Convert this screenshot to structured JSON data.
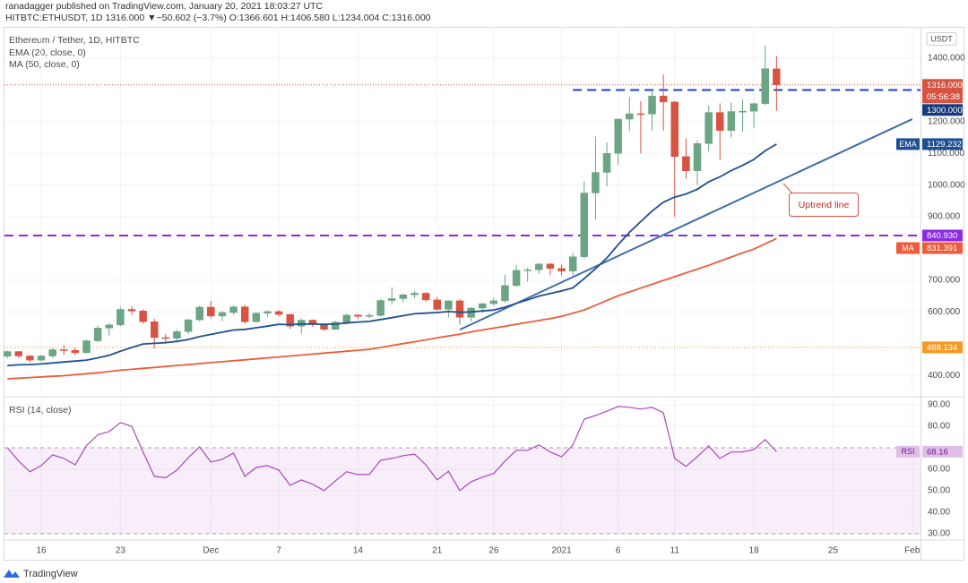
{
  "header": {
    "publisher": "ranadagger published on TradingView.com, January 20, 2021 18:03:27 UTC",
    "symbol": "HITBTC:ETHUSDT, 1D",
    "last": "1316.000",
    "change": "▼−50.602 (−3.7%)",
    "open": "O:1366.601",
    "high": "H:1406.580",
    "low": "L:1234.004",
    "close": "C:1316.000"
  },
  "footer": {
    "brand": "TradingView"
  },
  "chart_data": [
    {
      "type": "candlestick",
      "title": "Ethereum / Tether, 1D, HITBTC",
      "currency": "USDT",
      "up_color": "#6ba583",
      "down_color": "#d75442",
      "x": [
        "2020-11-13",
        "2020-11-14",
        "2020-11-15",
        "2020-11-16",
        "2020-11-17",
        "2020-11-18",
        "2020-11-19",
        "2020-11-20",
        "2020-11-21",
        "2020-11-22",
        "2020-11-23",
        "2020-11-24",
        "2020-11-25",
        "2020-11-26",
        "2020-11-27",
        "2020-11-28",
        "2020-11-29",
        "2020-11-30",
        "2020-12-01",
        "2020-12-02",
        "2020-12-03",
        "2020-12-04",
        "2020-12-05",
        "2020-12-06",
        "2020-12-07",
        "2020-12-08",
        "2020-12-09",
        "2020-12-10",
        "2020-12-11",
        "2020-12-12",
        "2020-12-13",
        "2020-12-14",
        "2020-12-15",
        "2020-12-16",
        "2020-12-17",
        "2020-12-18",
        "2020-12-19",
        "2020-12-20",
        "2020-12-21",
        "2020-12-22",
        "2020-12-23",
        "2020-12-24",
        "2020-12-25",
        "2020-12-26",
        "2020-12-27",
        "2020-12-28",
        "2020-12-29",
        "2020-12-30",
        "2020-12-31",
        "2021-01-01",
        "2021-01-02",
        "2021-01-03",
        "2021-01-04",
        "2021-01-05",
        "2021-01-06",
        "2021-01-07",
        "2021-01-08",
        "2021-01-09",
        "2021-01-10",
        "2021-01-11",
        "2021-01-12",
        "2021-01-13",
        "2021-01-14",
        "2021-01-15",
        "2021-01-16",
        "2021-01-17",
        "2021-01-18",
        "2021-01-19",
        "2021-01-20"
      ],
      "open": [
        460,
        475,
        461,
        448,
        461,
        481,
        479,
        471,
        509,
        549,
        559,
        608,
        603,
        569,
        519,
        517,
        538,
        575,
        615,
        587,
        598,
        616,
        569,
        596,
        601,
        592,
        555,
        574,
        560,
        545,
        568,
        590,
        586,
        589,
        636,
        642,
        654,
        659,
        638,
        608,
        635,
        583,
        612,
        626,
        635,
        683,
        731,
        733,
        751,
        737,
        729,
        774,
        975,
        1040,
        1100,
        1208,
        1225,
        1224,
        1281,
        1262,
        1090,
        1045,
        1131,
        1229,
        1172,
        1232,
        1233,
        1257,
        1366.601
      ],
      "high": [
        478,
        476,
        464,
        465,
        486,
        496,
        487,
        512,
        556,
        565,
        616,
        618,
        608,
        578,
        530,
        545,
        578,
        620,
        635,
        603,
        620,
        622,
        599,
        605,
        606,
        595,
        579,
        576,
        562,
        572,
        595,
        592,
        596,
        640,
        677,
        658,
        666,
        662,
        647,
        637,
        640,
        615,
        628,
        645,
        717,
        748,
        740,
        754,
        754,
        749,
        786,
        1012,
        1153,
        1135,
        1210,
        1278,
        1265,
        1300,
        1349,
        1265,
        1148,
        1141,
        1250,
        1258,
        1260,
        1270,
        1260,
        1440,
        1406.58
      ],
      "low": [
        453,
        455,
        441,
        444,
        455,
        465,
        464,
        470,
        505,
        525,
        555,
        590,
        563,
        485,
        500,
        508,
        530,
        570,
        580,
        571,
        591,
        563,
        566,
        584,
        585,
        546,
        531,
        553,
        540,
        543,
        562,
        578,
        580,
        585,
        623,
        630,
        644,
        632,
        603,
        583,
        560,
        570,
        596,
        620,
        628,
        680,
        695,
        720,
        716,
        715,
        715,
        768,
        890,
        996,
        1064,
        1170,
        1100,
        1172,
        1172,
        900,
        1020,
        1000,
        1107,
        1080,
        1150,
        1168,
        1180,
        1252,
        1234.004
      ],
      "close": [
        475,
        461,
        448,
        461,
        481,
        479,
        471,
        509,
        549,
        559,
        608,
        603,
        569,
        519,
        517,
        538,
        575,
        615,
        587,
        598,
        616,
        569,
        596,
        601,
        592,
        555,
        574,
        560,
        545,
        568,
        590,
        586,
        589,
        636,
        642,
        654,
        659,
        638,
        608,
        635,
        583,
        612,
        626,
        635,
        683,
        731,
        733,
        751,
        737,
        729,
        774,
        975,
        1040,
        1100,
        1208,
        1225,
        1224,
        1281,
        1262,
        1090,
        1045,
        1131,
        1229,
        1172,
        1232,
        1233,
        1257,
        1367,
        1316
      ],
      "series": [
        {
          "name": "EMA (20, close, 0)",
          "tag": "EMA",
          "color": "#1f4f91",
          "values": [
            431,
            433,
            434,
            436,
            439,
            442,
            445,
            448,
            455,
            463,
            476,
            488,
            499,
            501,
            503,
            507,
            513,
            522,
            529,
            536,
            543,
            545,
            550,
            555,
            561,
            560,
            562,
            562,
            561,
            562,
            565,
            568,
            570,
            576,
            582,
            588,
            594,
            596,
            598,
            601,
            599,
            600,
            603,
            606,
            615,
            627,
            638,
            650,
            658,
            666,
            676,
            705,
            736,
            770,
            812,
            851,
            885,
            918,
            946,
            962,
            972,
            987,
            1010,
            1026,
            1046,
            1062,
            1081,
            1108,
            1129.232
          ]
        },
        {
          "name": "MA (50, close, 0)",
          "tag": "MA",
          "color": "#ec5b3b",
          "values": [
            389,
            391,
            393,
            395,
            397,
            399,
            402,
            405,
            408,
            412,
            416,
            419,
            422,
            425,
            428,
            431,
            434,
            437,
            440,
            443,
            446,
            449,
            452,
            455,
            458,
            461,
            464,
            467,
            470,
            473,
            476,
            479,
            482,
            488,
            494,
            500,
            506,
            512,
            518,
            524,
            530,
            537,
            543,
            549,
            555,
            561,
            567,
            573,
            579,
            586,
            596,
            606,
            621,
            636,
            651,
            663,
            675,
            687,
            699,
            711,
            723,
            735,
            747,
            760,
            773,
            786,
            798,
            815,
            831.391
          ]
        }
      ],
      "levels": [
        {
          "value": 1316,
          "label": "1316.000",
          "color": "#d75442",
          "dash": "1 2",
          "countdown": "05:56:38"
        },
        {
          "value": 1300,
          "label": "1300.000",
          "color": "#1c3fd0",
          "dash": "10 6",
          "from": "2021-01-02",
          "badge_color": "#15397a"
        },
        {
          "value": 840.93,
          "label": "840.930",
          "color": "#8a2be2",
          "dash": "10 6"
        },
        {
          "value": 488.134,
          "label": "488.134",
          "color": "#f39a20",
          "dash": "1 2"
        }
      ],
      "trendline": {
        "x": [
          "2020-12-23",
          "2021-02-01"
        ],
        "values": [
          544,
          1208
        ],
        "color": "#3d6ea6"
      },
      "annotation": "Uptrend line",
      "xlim": [
        "2020-11-12T18:00:00Z",
        "2021-02-01T17:30:00Z"
      ],
      "xticks": [
        {
          "value": "2020-11-16",
          "label": "16"
        },
        {
          "value": "2020-11-23",
          "label": "23"
        },
        {
          "value": "2020-12-01",
          "label": "Dec"
        },
        {
          "value": "2020-12-07",
          "label": "7"
        },
        {
          "value": "2020-12-14",
          "label": "14"
        },
        {
          "value": "2020-12-21",
          "label": "21"
        },
        {
          "value": "2020-12-26",
          "label": "26"
        },
        {
          "value": "2021-01-01",
          "label": "2021"
        },
        {
          "value": "2021-01-06",
          "label": "6"
        },
        {
          "value": "2021-01-11",
          "label": "11"
        },
        {
          "value": "2021-01-18",
          "label": "18"
        },
        {
          "value": "2021-01-25",
          "label": "25"
        },
        {
          "value": "2021-02-01",
          "label": "Feb"
        }
      ],
      "ylim": [
        341,
        1499
      ],
      "yticks": [
        {
          "value": 1400,
          "label": "1400.000"
        },
        {
          "value": 1200,
          "label": "1200.000"
        },
        {
          "value": 1100,
          "label": "1100.000"
        },
        {
          "value": 1000,
          "label": "1000.000"
        },
        {
          "value": 900,
          "label": "900.000"
        },
        {
          "value": 700,
          "label": "700.000"
        },
        {
          "value": 600,
          "label": "600.000"
        },
        {
          "value": 400,
          "label": "400.000"
        }
      ],
      "grid": true
    },
    {
      "type": "line",
      "title": "RSI (14, close)",
      "series": [
        {
          "name": "RSI (14, close)",
          "tag": "RSI",
          "color": "#ab47bc",
          "values": [
            70,
            63.8,
            58.8,
            61.7,
            66.7,
            65,
            62,
            71,
            76,
            77.5,
            81.7,
            80,
            68,
            56.7,
            56,
            59.6,
            65.4,
            70.4,
            63.3,
            64.6,
            67.5,
            56.7,
            60.8,
            61.7,
            59.6,
            52.5,
            55,
            53,
            50,
            54.6,
            58.8,
            57.5,
            57.5,
            64.2,
            65,
            66.3,
            67,
            62,
            55,
            59,
            50,
            54.2,
            56.3,
            58,
            63.8,
            68.8,
            68.8,
            71.3,
            68,
            65.8,
            71.3,
            83.3,
            85,
            87,
            89.2,
            88.8,
            88,
            88.8,
            86.3,
            65,
            61.3,
            65.8,
            70.8,
            65,
            68,
            68,
            69.2,
            73.8,
            68.16
          ]
        }
      ],
      "band": [
        30,
        70
      ],
      "band_color": "#9c27b0",
      "ylim": [
        28.3,
        92.9
      ],
      "yticks": [
        {
          "value": 90,
          "label": "90.00"
        },
        {
          "value": 80,
          "label": "80.00"
        },
        {
          "value": 60,
          "label": "60.00"
        },
        {
          "value": 50,
          "label": "50.00"
        },
        {
          "value": 40,
          "label": "40.00"
        },
        {
          "value": 30,
          "label": "30.00"
        }
      ],
      "grid": true
    }
  ]
}
